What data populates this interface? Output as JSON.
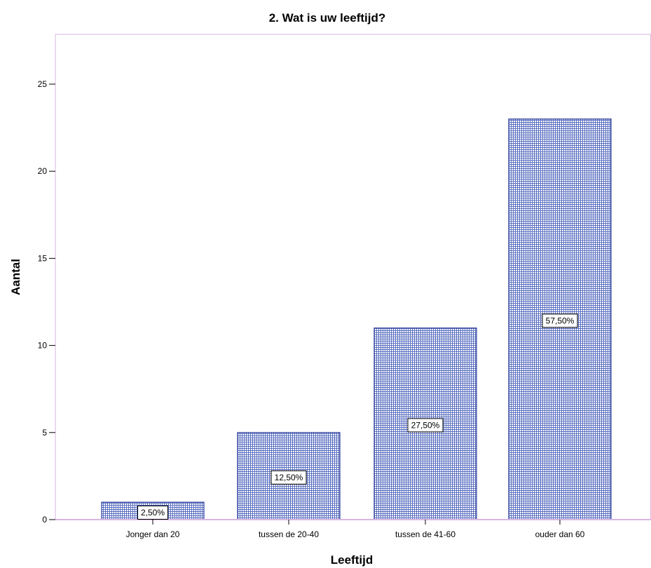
{
  "colors": {
    "bar_fill": "#ffffff",
    "bar_pattern": "#5a6fc0",
    "bar_border": "#2f3f9a",
    "frame": "#d8b6e0",
    "axis": "#000000",
    "label_box_fill": "#ffffff",
    "label_box_border": "#000000"
  },
  "chart_data": {
    "type": "bar",
    "title": "2. Wat is uw leeftijd?",
    "xlabel": "Leeftijd",
    "ylabel": "Aantal",
    "categories": [
      "Jonger dan 20",
      "tussen de 20-40",
      "tussen de 41-60",
      "ouder dan 60"
    ],
    "values": [
      1,
      5,
      11,
      23
    ],
    "data_labels": [
      "2,50%",
      "12,50%",
      "27,50%",
      "57,50%"
    ],
    "yticks": [
      0,
      5,
      10,
      15,
      20,
      25
    ],
    "ytick_labels": [
      "0",
      "5",
      "10",
      "15",
      "20",
      "25"
    ],
    "ylim": [
      0,
      28
    ],
    "grid": false,
    "legend": "none",
    "pattern": "grid-hatch"
  }
}
